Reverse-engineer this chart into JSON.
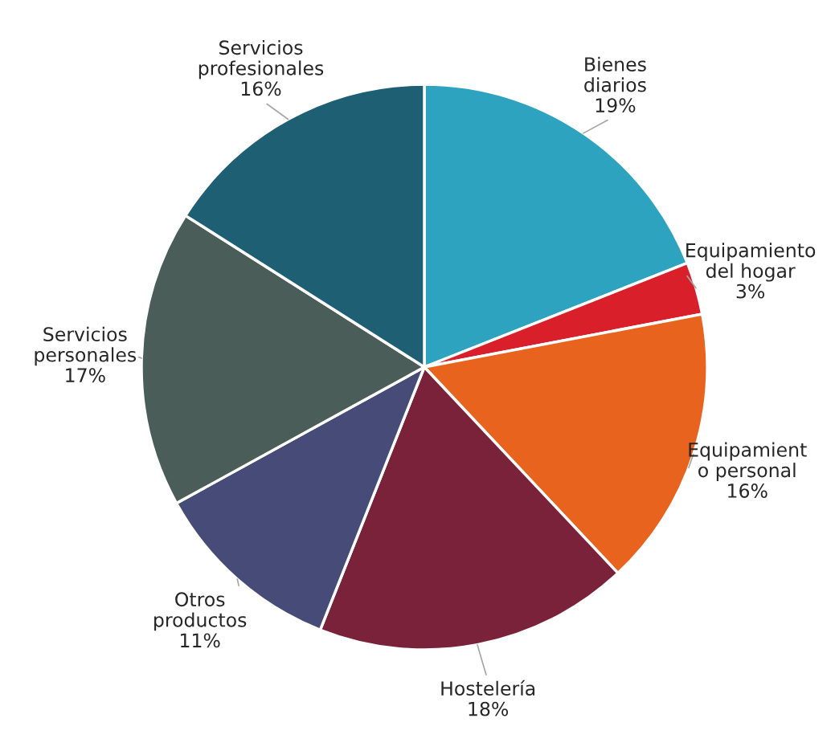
{
  "chart_data": {
    "type": "pie",
    "categories": [
      "Bienes\ndiarios",
      "Equipamiento\ndel hogar",
      "Equipamient\no personal",
      "Hostelería",
      "Otros\nproductos",
      "Servicios\npersonales",
      "Servicios\nprofesionales"
    ],
    "values": [
      19,
      3,
      16,
      18,
      11,
      17,
      16
    ],
    "value_labels": [
      "19%",
      "3%",
      "16%",
      "18%",
      "11%",
      "17%",
      "16%"
    ],
    "colors": [
      "#2ea3c0",
      "#d81f2a",
      "#e8641e",
      "#7b223b",
      "#474b78",
      "#4a5d58",
      "#1e5f74"
    ]
  }
}
